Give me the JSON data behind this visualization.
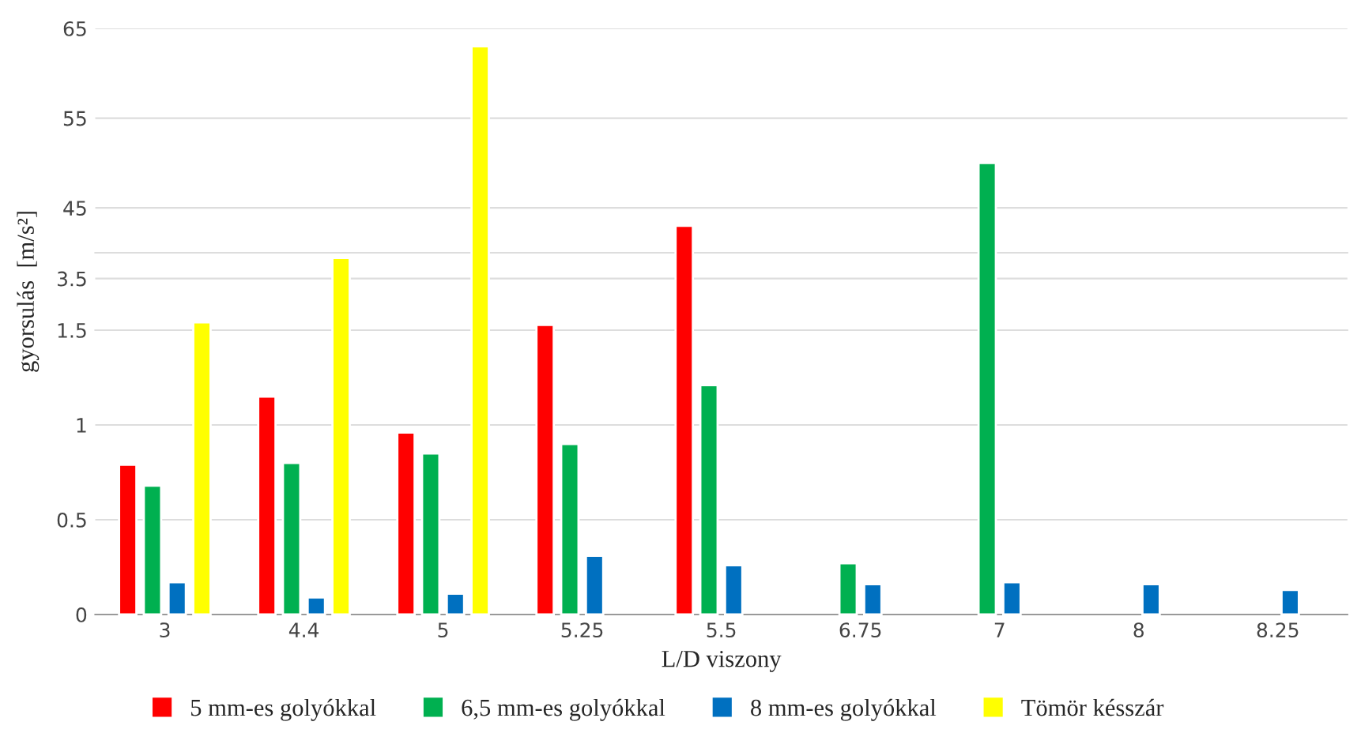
{
  "chart_data": [
    {
      "type": "bar",
      "categories": [
        "3",
        "4.4",
        "5",
        "5.25",
        "5.5",
        "6.75",
        "7",
        "8",
        "8.25"
      ],
      "series": [
        {
          "color": "#ff0000",
          "values": [
            null,
            null,
            null,
            null,
            43,
            null,
            null,
            null,
            null
          ]
        },
        {
          "color": "#00b050",
          "values": [
            null,
            null,
            null,
            null,
            null,
            null,
            50,
            null,
            null
          ]
        },
        {
          "color": "#0070c0",
          "values": [
            null,
            null,
            null,
            null,
            null,
            null,
            null,
            null,
            null
          ]
        },
        {
          "color": "#ffff00",
          "values": [
            null,
            null,
            63,
            null,
            null,
            null,
            null,
            null,
            null
          ]
        }
      ],
      "ylim": [
        40,
        65
      ],
      "yticks": [
        45,
        55,
        65
      ],
      "grid": "y",
      "tick_labels": "y"
    },
    {
      "type": "bar",
      "ylabel": "gyorsulás  [m/s²]",
      "categories": [
        "3",
        "4.4",
        "5",
        "5.25",
        "5.5",
        "6.75",
        "7",
        "8",
        "8.25"
      ],
      "series": [
        {
          "color": "#ff0000",
          "values": [
            null,
            null,
            null,
            1.7,
            null,
            null,
            null,
            null,
            null
          ]
        },
        {
          "color": "#00b050",
          "values": [
            null,
            null,
            null,
            null,
            null,
            null,
            null,
            null,
            null
          ]
        },
        {
          "color": "#0070c0",
          "values": [
            null,
            null,
            null,
            null,
            null,
            null,
            null,
            null,
            null
          ]
        },
        {
          "color": "#ffff00",
          "values": [
            1.8,
            4.3,
            null,
            null,
            null,
            null,
            null,
            null,
            null
          ]
        }
      ],
      "ylim": [
        1.5,
        4.5
      ],
      "yticks": [
        1.5,
        3.5
      ],
      "grid": "y",
      "tick_labels": "y"
    },
    {
      "type": "bar",
      "xlabel": "L/D viszony",
      "categories": [
        "3",
        "4.4",
        "5",
        "5.25",
        "5.5",
        "6.75",
        "7",
        "8",
        "8.25"
      ],
      "series": [
        {
          "name": "5 mm-es golyókkal",
          "color": "#ff0000",
          "values": [
            0.79,
            1.15,
            0.96,
            null,
            null,
            null,
            null,
            null,
            null
          ]
        },
        {
          "name": "6,5 mm-es golyókkal",
          "color": "#00b050",
          "values": [
            0.68,
            0.8,
            0.85,
            0.9,
            1.21,
            0.27,
            null,
            null,
            null
          ]
        },
        {
          "name": "8 mm-es golyókkal",
          "color": "#0070c0",
          "values": [
            0.17,
            0.09,
            0.11,
            0.31,
            0.26,
            0.16,
            0.17,
            0.16,
            0.13
          ]
        },
        {
          "name": "Tömör késszár",
          "color": "#ffff00",
          "values": [
            null,
            null,
            null,
            null,
            null,
            null,
            null,
            null,
            null
          ]
        }
      ],
      "ylim": [
        0,
        1.5
      ],
      "yticks": [
        0,
        0.5,
        1
      ],
      "grid": "y",
      "legend": "bottom"
    }
  ]
}
